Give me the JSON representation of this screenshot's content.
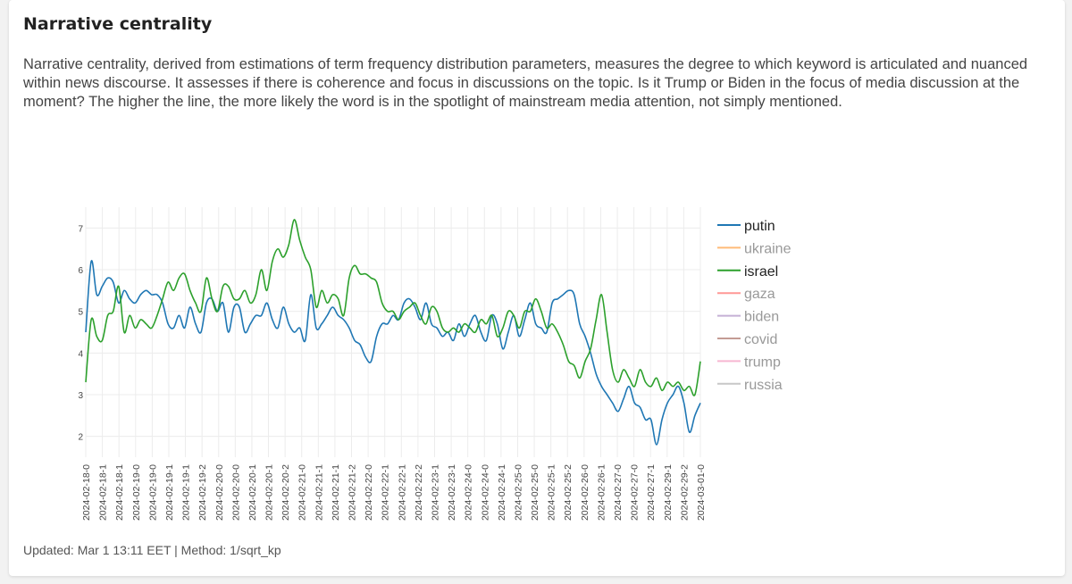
{
  "page": {
    "title": "Narrative centrality",
    "description": "Narrative centrality, derived from estimations of term frequency distribution parameters, measures the degree to which keyword is articulated and nuanced within news discourse. It assesses if there is coherence and focus in discussions on the topic. Is it Trump or Biden in the focus of media discussion at the moment? The higher the line, the more likely the word is in the spotlight of mainstream media attention, not simply mentioned.",
    "footer": "Updated: Mar 1 13:11 EET | Method: 1/sqrt_kp"
  },
  "chart_data": {
    "type": "line",
    "title": "",
    "xlabel": "",
    "ylabel": "",
    "ylim": [
      1.5,
      7.5
    ],
    "y_ticks": [
      2,
      3,
      4,
      5,
      6,
      7
    ],
    "x_ticks": [
      "2024-02-18-0",
      "2024-02-18-1",
      "2024-02-18-1",
      "2024-02-19-0",
      "2024-02-19-0",
      "2024-02-19-1",
      "2024-02-19-1",
      "2024-02-19-2",
      "2024-02-20-0",
      "2024-02-20-0",
      "2024-02-20-1",
      "2024-02-20-1",
      "2024-02-20-2",
      "2024-02-21-0",
      "2024-02-21-1",
      "2024-02-21-1",
      "2024-02-21-2",
      "2024-02-22-0",
      "2024-02-22-1",
      "2024-02-22-1",
      "2024-02-22-2",
      "2024-02-23-1",
      "2024-02-23-1",
      "2024-02-24-0",
      "2024-02-24-0",
      "2024-02-24-1",
      "2024-02-25-0",
      "2024-02-25-0",
      "2024-02-25-1",
      "2024-02-25-2",
      "2024-02-26-0",
      "2024-02-26-1",
      "2024-02-27-0",
      "2024-02-27-0",
      "2024-02-27-1",
      "2024-02-29-1",
      "2024-02-29-2",
      "2024-03-01-0"
    ],
    "grid": true,
    "legend_position": "right",
    "series": [
      {
        "name": "putin",
        "color": "#1f77b4",
        "visible": true,
        "values": [
          4.5,
          6.2,
          5.4,
          5.6,
          5.8,
          5.7,
          5.2,
          5.5,
          5.3,
          5.2,
          5.4,
          5.5,
          5.4,
          5.4,
          5.2,
          4.7,
          4.6,
          4.9,
          4.6,
          5.1,
          4.7,
          4.5,
          5.2,
          5.3,
          5.0,
          5.2,
          4.5,
          5.1,
          5.1,
          4.5,
          4.7,
          4.9,
          4.9,
          5.2,
          4.8,
          4.6,
          5.1,
          4.7,
          4.5,
          4.6,
          4.3,
          5.4,
          4.6,
          4.7,
          4.9,
          5.1,
          4.9,
          4.8,
          4.6,
          4.3,
          4.2,
          3.9,
          3.8,
          4.4,
          4.7,
          4.7,
          4.9,
          4.8,
          5.2,
          5.3,
          5.1,
          4.8,
          5.2,
          4.7,
          4.6,
          4.4,
          4.5,
          4.3,
          4.7,
          4.4,
          4.7,
          4.9,
          4.5,
          4.3,
          4.9,
          4.7,
          4.1,
          4.5,
          4.9,
          4.4,
          4.8,
          5.2,
          4.7,
          4.6,
          4.5,
          5.2,
          5.3,
          5.4,
          5.5,
          5.4,
          4.7,
          4.4,
          4.0,
          3.5,
          3.2,
          3.0,
          2.8,
          2.6,
          2.9,
          3.2,
          2.8,
          2.7,
          2.4,
          2.4,
          1.8,
          2.4,
          2.8,
          3.0,
          3.2,
          2.8,
          2.1,
          2.5,
          2.8
        ]
      },
      {
        "name": "ukraine",
        "color": "#ffbb78",
        "visible": false,
        "values": []
      },
      {
        "name": "israel",
        "color": "#2ca02c",
        "visible": true,
        "values": [
          3.3,
          4.8,
          4.4,
          4.3,
          4.9,
          5.0,
          5.6,
          4.5,
          4.9,
          4.6,
          4.8,
          4.7,
          4.6,
          4.9,
          5.3,
          5.7,
          5.5,
          5.8,
          5.9,
          5.5,
          5.2,
          5.0,
          5.8,
          5.3,
          5.0,
          5.6,
          5.6,
          5.3,
          5.3,
          5.5,
          5.2,
          5.4,
          6.0,
          5.5,
          6.2,
          6.5,
          6.3,
          6.6,
          7.2,
          6.7,
          6.3,
          6.0,
          5.1,
          5.5,
          5.2,
          5.4,
          5.3,
          4.9,
          5.8,
          6.1,
          5.9,
          5.9,
          5.8,
          5.7,
          5.2,
          5.0,
          5.0,
          4.8,
          5.0,
          5.1,
          5.2,
          4.9,
          4.7,
          5.1,
          5.0,
          4.6,
          4.5,
          4.6,
          4.5,
          4.7,
          4.6,
          4.5,
          4.8,
          4.7,
          4.9,
          4.4,
          4.6,
          5.0,
          4.9,
          4.6,
          5.0,
          5.0,
          5.3,
          5.0,
          4.6,
          4.7,
          4.5,
          4.2,
          3.8,
          3.7,
          3.4,
          3.8,
          4.1,
          4.8,
          5.4,
          4.5,
          3.6,
          3.3,
          3.6,
          3.4,
          3.2,
          3.6,
          3.3,
          3.2,
          3.4,
          3.1,
          3.3,
          3.2,
          3.3,
          3.1,
          3.2,
          3.0,
          3.8
        ]
      },
      {
        "name": "gaza",
        "color": "#ff9896",
        "visible": false,
        "values": []
      },
      {
        "name": "biden",
        "color": "#c5b0d5",
        "visible": false,
        "values": []
      },
      {
        "name": "covid",
        "color": "#c49c94",
        "visible": false,
        "values": []
      },
      {
        "name": "trump",
        "color": "#f7b6d2",
        "visible": false,
        "values": []
      },
      {
        "name": "russia",
        "color": "#c7c7c7",
        "visible": false,
        "values": []
      }
    ]
  }
}
